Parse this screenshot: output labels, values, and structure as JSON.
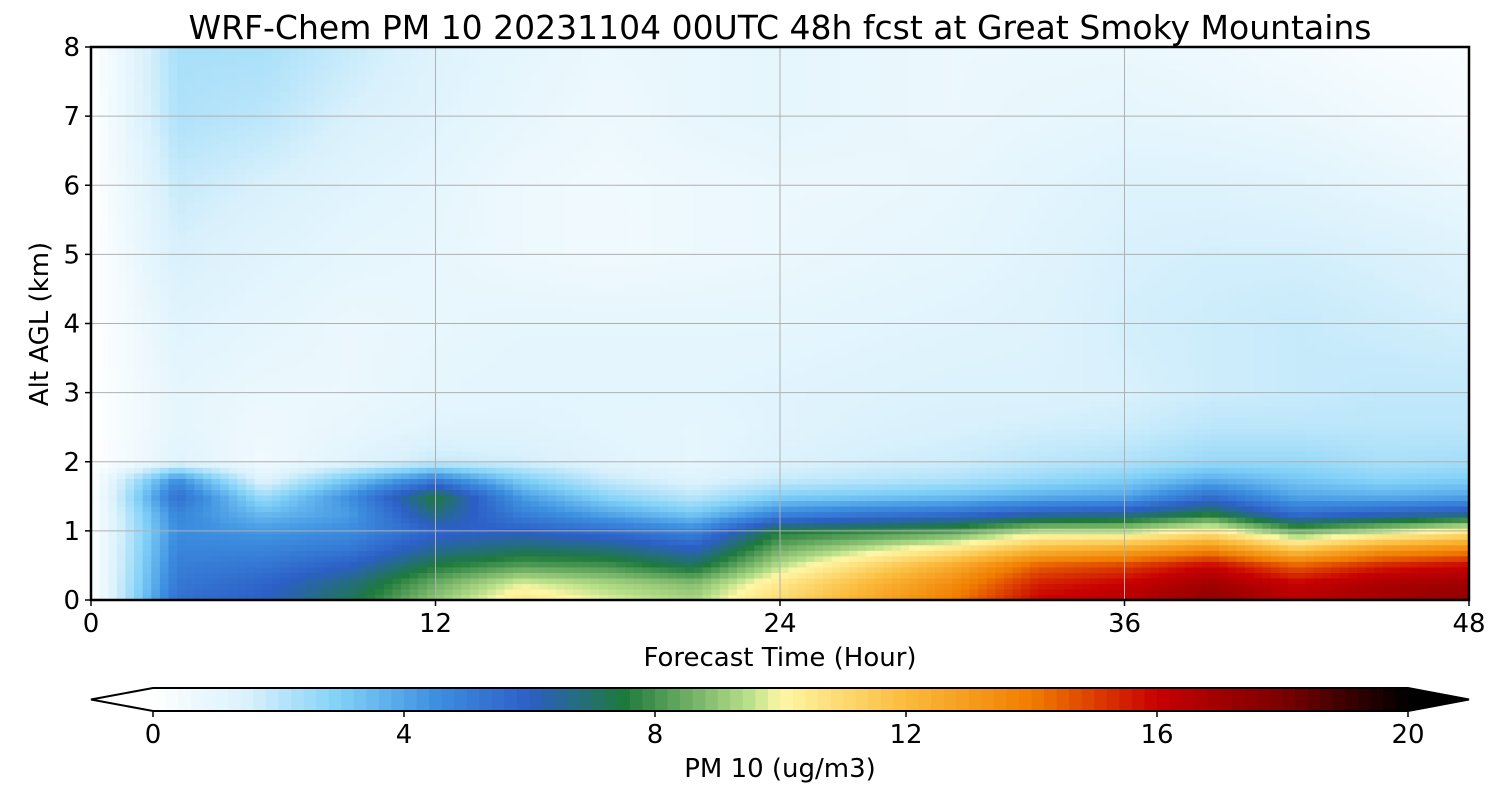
{
  "chart_data": {
    "type": "heatmap",
    "title": "WRF-Chem PM 10  20231104 00UTC 48h fcst at Great Smoky Mountains",
    "xlabel": "Forecast Time (Hour)",
    "ylabel": "Alt AGL (km)",
    "xlim": [
      0,
      48
    ],
    "ylim": [
      0,
      8
    ],
    "xticks": [
      "0",
      "12",
      "24",
      "36",
      "48"
    ],
    "yticks": [
      "0",
      "1",
      "2",
      "3",
      "4",
      "5",
      "6",
      "7",
      "8"
    ],
    "grid": true,
    "x": [
      0,
      3,
      6,
      9,
      12,
      15,
      18,
      21,
      24,
      27,
      30,
      33,
      36,
      39,
      42,
      45,
      48
    ],
    "y": [
      0,
      0.25,
      0.5,
      0.75,
      1,
      1.25,
      1.5,
      1.75,
      2,
      2.5,
      3,
      4,
      5,
      6,
      7,
      8
    ],
    "z_units": "ug/m3",
    "values": [
      [
        0,
        5.5,
        6.0,
        7.2,
        9.0,
        10.5,
        9.8,
        9.3,
        11.0,
        12.5,
        14.0,
        16.0,
        16.5,
        17.5,
        16.5,
        17.0,
        17.5
      ],
      [
        0,
        5.2,
        5.8,
        6.8,
        8.5,
        9.8,
        9.3,
        8.8,
        10.5,
        12.0,
        13.5,
        15.5,
        16.0,
        17.0,
        16.0,
        16.8,
        17.0
      ],
      [
        0,
        5.0,
        5.3,
        6.0,
        7.5,
        8.2,
        8.0,
        7.2,
        9.5,
        11.0,
        12.5,
        14.5,
        15.0,
        16.0,
        14.5,
        15.5,
        16.0
      ],
      [
        0,
        4.8,
        4.8,
        5.2,
        6.5,
        7.0,
        6.8,
        6.0,
        8.5,
        9.5,
        10.5,
        12.0,
        12.5,
        13.5,
        11.5,
        13.0,
        13.5
      ],
      [
        0,
        4.6,
        4.3,
        4.6,
        5.8,
        6.0,
        5.5,
        4.8,
        7.5,
        7.8,
        8.2,
        9.5,
        9.5,
        10.5,
        8.5,
        9.5,
        10.5
      ],
      [
        0,
        4.8,
        3.5,
        4.2,
        6.8,
        5.0,
        4.0,
        3.2,
        4.8,
        5.2,
        5.5,
        6.2,
        6.5,
        7.5,
        5.5,
        6.0,
        6.5
      ],
      [
        0,
        5.5,
        2.5,
        4.5,
        7.5,
        4.2,
        2.8,
        2.0,
        3.0,
        3.2,
        3.4,
        3.8,
        4.0,
        5.5,
        4.0,
        3.8,
        4.0
      ],
      [
        0,
        4.5,
        1.2,
        3.2,
        5.0,
        3.0,
        1.8,
        1.3,
        1.8,
        2.0,
        2.2,
        2.6,
        3.0,
        3.8,
        3.2,
        2.8,
        3.0
      ],
      [
        0,
        1.2,
        0.6,
        1.2,
        1.8,
        1.6,
        1.2,
        1.0,
        1.4,
        1.6,
        1.7,
        2.0,
        2.2,
        2.6,
        2.6,
        2.3,
        2.4
      ],
      [
        0,
        1.0,
        0.7,
        0.9,
        1.2,
        1.2,
        1.1,
        1.0,
        1.2,
        1.4,
        1.5,
        1.6,
        1.7,
        2.0,
        2.0,
        2.0,
        2.0
      ],
      [
        0,
        1.0,
        0.8,
        0.8,
        1.0,
        1.1,
        1.1,
        1.1,
        1.2,
        1.3,
        1.4,
        1.4,
        1.5,
        1.7,
        1.8,
        1.9,
        1.9
      ],
      [
        0,
        1.2,
        1.0,
        0.8,
        0.9,
        1.0,
        1.0,
        1.0,
        1.0,
        1.1,
        1.2,
        1.3,
        1.6,
        1.7,
        1.8,
        1.7,
        1.6
      ],
      [
        0,
        1.5,
        1.2,
        1.0,
        0.9,
        0.7,
        0.6,
        0.7,
        0.8,
        0.9,
        1.0,
        1.2,
        1.5,
        1.6,
        1.6,
        1.5,
        1.3
      ],
      [
        0,
        1.8,
        1.5,
        1.2,
        1.0,
        0.7,
        0.6,
        0.7,
        0.8,
        0.8,
        0.9,
        1.1,
        1.3,
        1.3,
        1.2,
        1.0,
        0.8
      ],
      [
        0,
        2.2,
        2.0,
        1.5,
        1.2,
        0.9,
        0.7,
        0.9,
        1.0,
        0.9,
        0.8,
        0.9,
        1.0,
        0.9,
        0.8,
        0.6,
        0.4
      ],
      [
        0,
        2.3,
        2.3,
        1.8,
        1.3,
        1.0,
        0.8,
        0.9,
        1.0,
        0.9,
        0.8,
        0.8,
        0.8,
        0.7,
        0.5,
        0.3,
        0.2
      ]
    ],
    "colorbar": {
      "label": "PM 10  (ug/m3)",
      "range": [
        0,
        20
      ],
      "ticks": [
        "0",
        "4",
        "8",
        "12",
        "16",
        "20"
      ],
      "extend": "both",
      "anchor_values": [
        0,
        1.5,
        3,
        4.5,
        6,
        7.5,
        9.5,
        10,
        12,
        14,
        16,
        18,
        20
      ],
      "anchor_colors": [
        "#ffffff",
        "#d9f1fc",
        "#7fd0f7",
        "#3d8fe0",
        "#2c5fc6",
        "#1e7a3c",
        "#b9e08a",
        "#fff7a6",
        "#fbbb3c",
        "#f07d00",
        "#c80000",
        "#7a0000",
        "#000000"
      ]
    }
  }
}
